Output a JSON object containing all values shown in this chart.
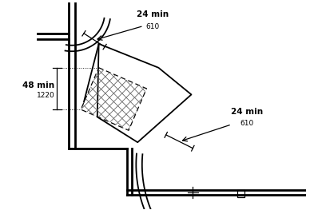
{
  "bg_color": "#ffffff",
  "line_color": "#000000",
  "figsize": [
    3.93,
    2.63
  ],
  "dpi": 100,
  "label_48": "48 min",
  "label_48_sub": "1220",
  "label_24a": "24 min",
  "label_24a_sub": "610",
  "label_24b": "24 min",
  "label_24b_sub": "610",
  "xlim": [
    0,
    10
  ],
  "ylim": [
    0,
    7
  ]
}
